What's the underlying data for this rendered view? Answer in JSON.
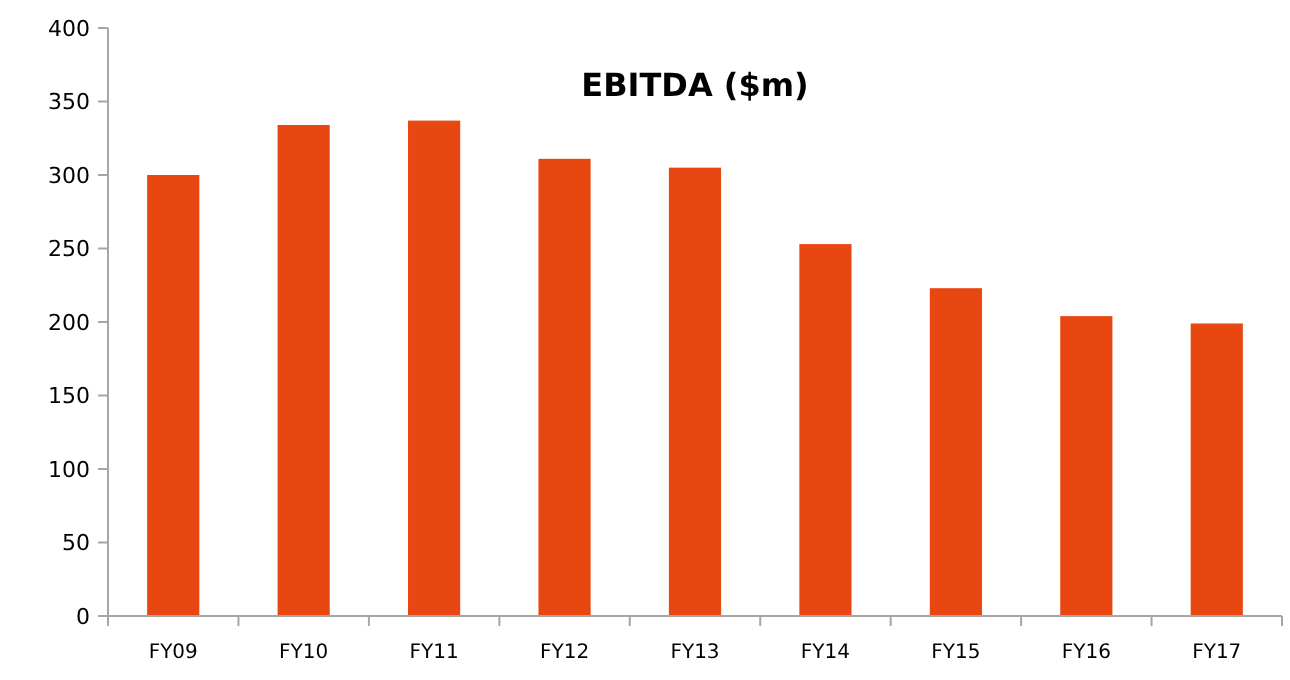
{
  "chart_data": {
    "type": "bar",
    "title": "EBITDA ($m)",
    "categories": [
      "FY09",
      "FY10",
      "FY11",
      "FY12",
      "FY13",
      "FY14",
      "FY15",
      "FY16",
      "FY17"
    ],
    "values": [
      300,
      334,
      337,
      311,
      305,
      253,
      223,
      204,
      199
    ],
    "color": "#e84711",
    "ylim": [
      0,
      400
    ],
    "yticks": [
      0,
      50,
      100,
      150,
      200,
      250,
      300,
      350,
      400
    ],
    "grid": false
  }
}
